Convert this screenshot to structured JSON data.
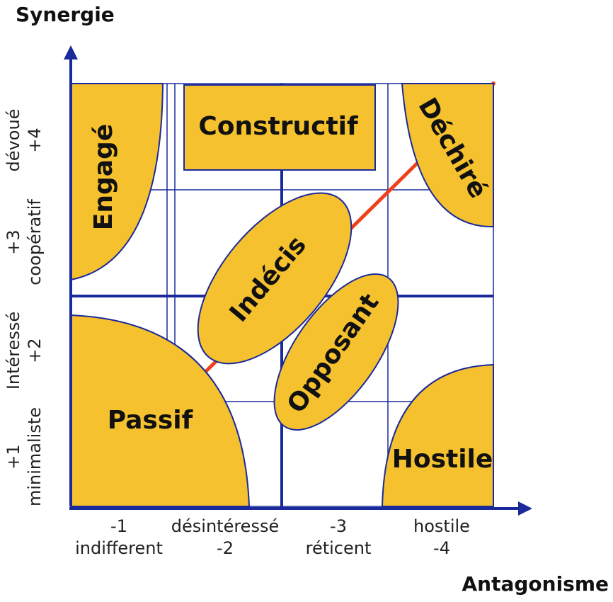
{
  "axes": {
    "y_title": "Synergie",
    "x_title": "Antagonisme"
  },
  "x_labels": [
    {
      "top": "-1",
      "bottom": "indifferent"
    },
    {
      "top": "désintéressé",
      "bottom": "-2"
    },
    {
      "top": "-3",
      "bottom": "réticent"
    },
    {
      "top": "hostile",
      "bottom": "-4"
    }
  ],
  "y_labels": [
    {
      "top": "dévoué",
      "bottom": "+4"
    },
    {
      "top": "+3",
      "bottom": "coopératif"
    },
    {
      "top": "Intéressé",
      "bottom": "+2"
    },
    {
      "top": "+1",
      "bottom": "minimaliste"
    }
  ],
  "regions": {
    "constructif": "Constructif",
    "engage": "Engagé",
    "dechire": "Déchiré",
    "indecis": "Indécis",
    "opposant": "Opposant",
    "passif": "Passif",
    "hostile": "Hostile"
  }
}
